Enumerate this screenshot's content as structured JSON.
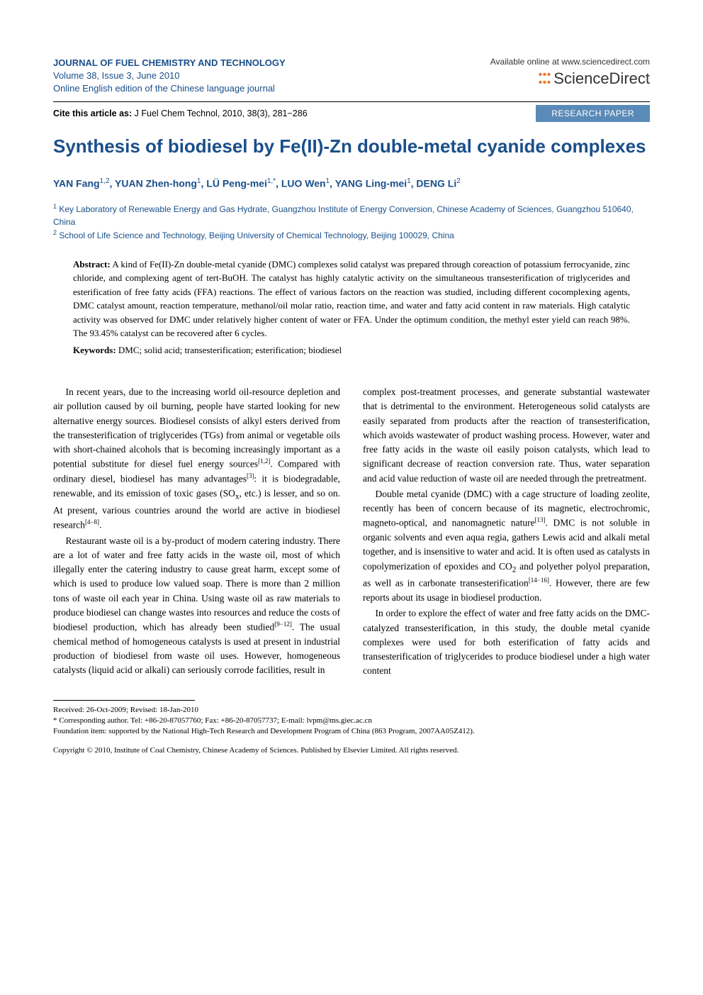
{
  "colors": {
    "journal_blue": "#1a4f8a",
    "badge_bg": "#5a8bb8",
    "badge_text": "#ffffff",
    "sd_orange": "#e8762d",
    "body_text": "#000000",
    "background": "#ffffff"
  },
  "typography": {
    "body_family": "Times New Roman",
    "header_family": "Arial",
    "title_size_pt": 20,
    "body_size_pt": 10,
    "abstract_size_pt": 9.5,
    "footnote_size_pt": 8
  },
  "header": {
    "journal_name": "JOURNAL OF FUEL CHEMISTRY AND TECHNOLOGY",
    "volume_line": "Volume 38, Issue 3, June 2010",
    "edition_line": "Online English edition of the Chinese language journal",
    "available_online": "Available online at www.sciencedirect.com",
    "sciencedirect": "ScienceDirect"
  },
  "citation": {
    "prefix": "Cite this article as:",
    "text": " J Fuel Chem Technol, 2010, 38(3), 281−286",
    "badge": "RESEARCH PAPER"
  },
  "article": {
    "title": "Synthesis of biodiesel by Fe(II)-Zn double-metal cyanide complexes",
    "authors_html": "YAN Fang<sup>1,2</sup>, YUAN Zhen-hong<sup>1</sup>, LÜ Peng-mei<sup>1,*</sup>, LUO Wen<sup>1</sup>, YANG Ling-mei<sup>1</sup>, DENG Li<sup>2</sup>",
    "affiliations": [
      "<sup>1</sup> Key Laboratory of Renewable Energy and Gas Hydrate, Guangzhou Institute of Energy Conversion, Chinese Academy of Sciences, Guangzhou 510640, China",
      "<sup>2</sup> School of Life Science and Technology, Beijing University of Chemical Technology, Beijing 100029, China"
    ]
  },
  "abstract": {
    "label": "Abstract:",
    "text": " A kind of Fe(II)-Zn double-metal cyanide (DMC) complexes solid catalyst was prepared through coreaction of potassium ferrocyanide, zinc chloride, and complexing agent of tert-BuOH. The catalyst has highly catalytic activity on the simultaneous transesterification of triglycerides and esterification of free fatty acids (FFA) reactions. The effect of various factors on the reaction was studied, including different cocomplexing agents, DMC catalyst amount, reaction temperature, methanol/oil molar ratio, reaction time, and water and fatty acid content in raw materials. High catalytic activity was observed for DMC under relatively higher content of water or FFA. Under the optimum condition, the methyl ester yield can reach 98%. The 93.45% catalyst can be recovered after 6 cycles.",
    "keywords_label": "Keywords:",
    "keywords": " DMC; solid acid; transesterification; esterification; biodiesel"
  },
  "body": {
    "left": [
      "In recent years, due to the increasing world oil-resource depletion and air pollution caused by oil burning, people have started looking for new alternative energy sources. Biodiesel consists of alkyl esters derived from the transesterification of triglycerides (TGs) from animal or vegetable oils with short-chained alcohols that is becoming increasingly important as a potential substitute for diesel fuel energy sources<sup>[1,2]</sup>. Compared with ordinary diesel, biodiesel has many advantages<sup>[3]</sup>: it is biodegradable, renewable, and its emission of toxic gases (SO<sub>x</sub>, etc.) is lesser, and so on. At present, various countries around the world are active in biodiesel research<sup>[4−8]</sup>.",
      "Restaurant waste oil is a by-product of modern catering industry. There are a lot of water and free fatty acids in the waste oil, most of which illegally enter the catering industry to cause great harm, except some of which is used to produce low valued soap. There is more than 2 million tons of waste oil each year in China. Using waste oil as raw materials to produce biodiesel can change wastes into resources and reduce the costs of biodiesel production, which has already been studied<sup>[9−12]</sup>. The usual chemical method of homogeneous catalysts is used at present in industrial production of biodiesel from waste oil uses. However, homogeneous catalysts (liquid acid or alkali) can seriously corrode facilities, result in"
    ],
    "right": [
      "complex post-treatment processes, and generate substantial wastewater that is detrimental to the environment. Heterogeneous solid catalysts are easily separated from products after the reaction of transesterification, which avoids wastewater of product washing process. However, water and free fatty acids in the waste oil easily poison catalysts, which lead to significant decrease of reaction conversion rate. Thus, water separation and acid value reduction of waste oil are needed through the pretreatment.",
      "Double metal cyanide (DMC) with a cage structure of loading zeolite, recently has been of concern because of its magnetic, electrochromic, magneto-optical, and nanomagnetic nature<sup>[13]</sup>. DMC is not soluble in organic solvents and even aqua regia, gathers Lewis acid and alkali metal together, and is insensitive to water and acid. It is often used as catalysts in copolymerization of epoxides and CO<sub>2</sub> and polyether polyol preparation, as well as in carbonate transesterification<sup>[14−16]</sup>. However, there are few reports about its usage in biodiesel production.",
      "In order to explore the effect of water and free fatty acids on the DMC-catalyzed transesterification, in this study, the double metal cyanide complexes were used for both esterification of fatty acids and transesterification of triglycerides to produce biodiesel under a high water content"
    ]
  },
  "footer": {
    "received": "Received: 26-Oct-2009; Revised: 18-Jan-2010",
    "corresponding": "* Corresponding author. Tel: +86-20-87057760; Fax: +86-20-87057737; E-mail: lvpm@ms.giec.ac.cn",
    "foundation": "Foundation item: supported by the National High-Tech Research and Development Program of China (863 Program, 2007AA05Z412).",
    "copyright": "Copyright © 2010, Institute of Coal Chemistry, Chinese Academy of Sciences. Published by Elsevier Limited. All rights reserved."
  }
}
